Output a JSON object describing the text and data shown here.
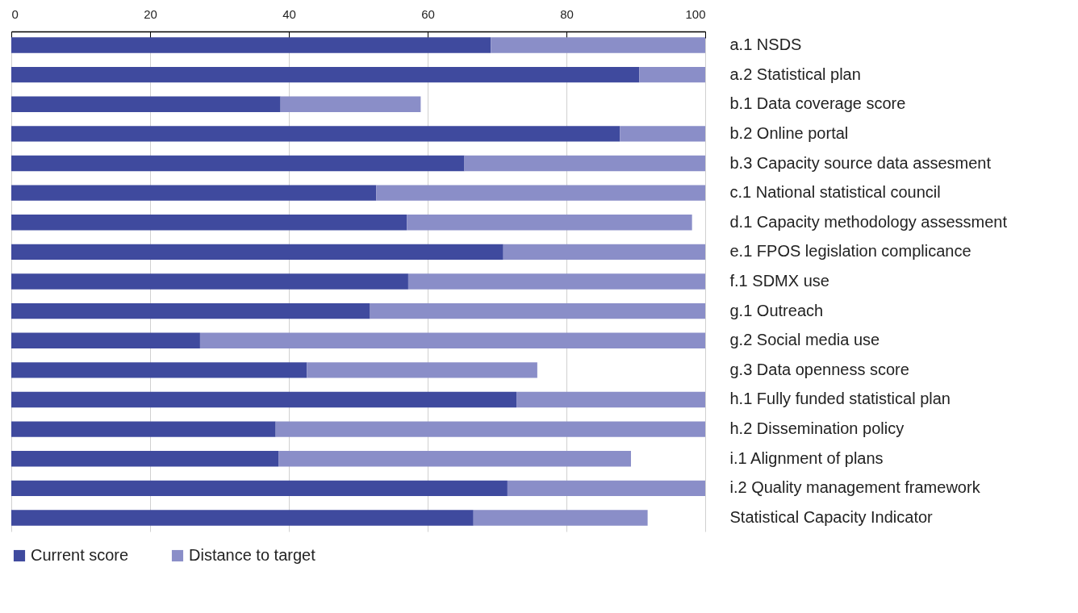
{
  "chart_data": {
    "type": "bar",
    "orientation": "horizontal",
    "stacked": true,
    "categories": [
      "a.1 NSDS",
      "a.2 Statistical plan",
      "b.1 Data coverage score",
      "b.2 Online portal",
      "b.3 Capacity source data assesment",
      "c.1 National statistical council",
      "d.1 Capacity methodology assessment",
      "e.1 FPOS legislation complicance",
      "f.1 SDMX use",
      "g.1 Outreach",
      "g.2 Social media use",
      "g.3 Data openness score",
      "h.1 Fully funded statistical plan",
      "h.2 Dissemination policy",
      "i.1 Alignment of plans",
      "i.2 Quality management framework",
      "Statistical Capacity Indicator"
    ],
    "series": [
      {
        "name": "Current score",
        "color": "#3f4a9e",
        "values": [
          69.1,
          90.5,
          38.8,
          87.7,
          65.3,
          52.6,
          57.0,
          70.9,
          57.2,
          51.7,
          27.2,
          42.6,
          72.8,
          38.1,
          38.5,
          71.5,
          66.6
        ]
      },
      {
        "name": "Distance to target",
        "color": "#8a8ec8",
        "values": [
          30.9,
          9.5,
          20.2,
          12.3,
          34.7,
          47.4,
          41.1,
          29.1,
          42.8,
          48.3,
          72.8,
          33.2,
          27.2,
          61.9,
          50.8,
          28.5,
          25.1
        ]
      }
    ],
    "xlim": [
      0,
      100
    ],
    "xticks": [
      0,
      20,
      40,
      60,
      80,
      100
    ],
    "grid": "x",
    "legend": "bottom left"
  }
}
